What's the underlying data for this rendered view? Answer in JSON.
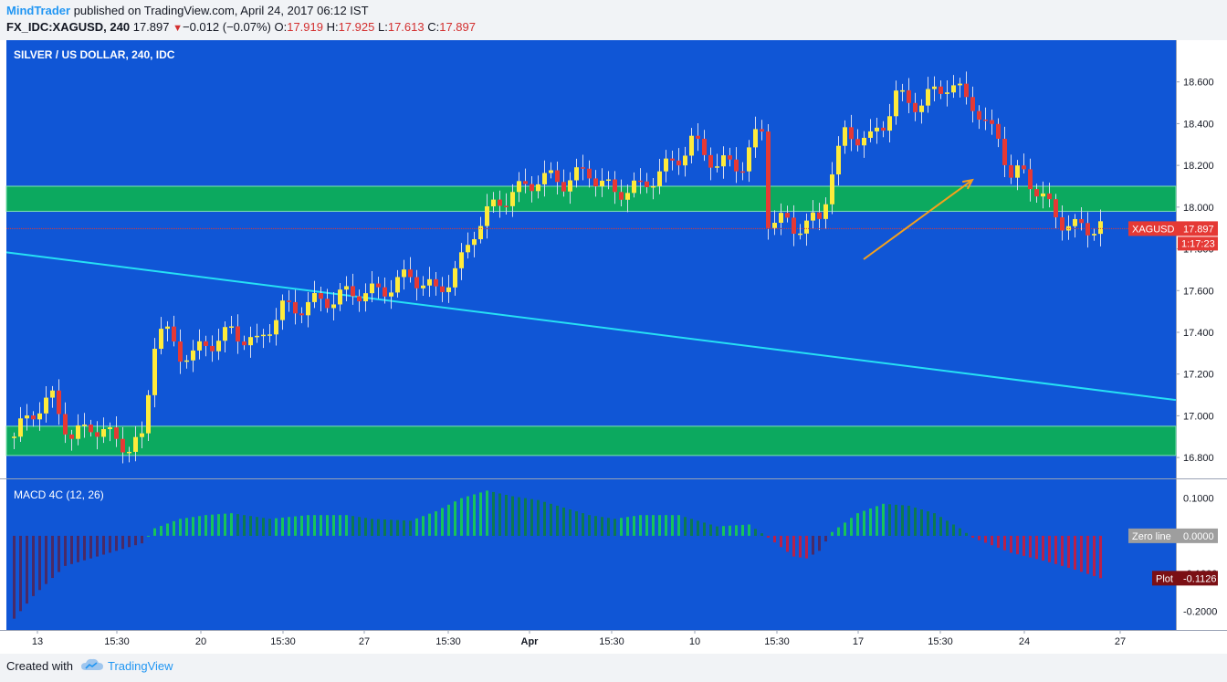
{
  "header": {
    "author": "MindTrader",
    "published_text": "published on TradingView.com, April 24, 2017 06:12 IST",
    "symbol_label": "FX_IDC:XAGUSD, 240",
    "last": "17.897",
    "change": "−0.012 (−0.07%)",
    "o_label": "O:",
    "o_value": "17.919",
    "h_label": "H:",
    "h_value": "17.925",
    "l_label": "L:",
    "l_value": "17.613",
    "c_label": "C:",
    "c_value": "17.897"
  },
  "footer": {
    "created": "Created with",
    "brand": "TradingView"
  },
  "colors": {
    "panel_bg": "#1056d6",
    "zone": "#0ca95f",
    "up_candle": "#ffeb3b",
    "down_candle": "#e53935",
    "trendline": "#26e0f5",
    "arrow": "#f6a11b",
    "price_line": "#e53935",
    "hist_pos_bright": "#18c45a",
    "hist_pos_dim": "#0d7a50",
    "hist_neg_bright": "#b8214a",
    "hist_neg_dim": "#4a2a66"
  },
  "chart_data": {
    "type": "candlestick",
    "title": "SILVER / US DOLLAR, 240, IDC",
    "y_ticks": [
      "18.600",
      "18.400",
      "18.200",
      "18.000",
      "17.800",
      "17.600",
      "17.400",
      "17.200",
      "17.000",
      "16.800"
    ],
    "y_range": [
      16.7,
      18.8
    ],
    "x_ticks": [
      "13",
      "15:30",
      "20",
      "15:30",
      "27",
      "15:30",
      "Apr",
      "15:30",
      "10",
      "15:30",
      "17",
      "15:30",
      "24",
      "27"
    ],
    "last_price_tag": "XAGUSD",
    "last_price": "17.897",
    "countdown": "1:17:23",
    "zones": [
      {
        "low": 17.98,
        "high": 18.1
      },
      {
        "low": 16.81,
        "high": 16.95
      }
    ],
    "trendline": [
      {
        "bar": 0,
        "price": 17.78
      },
      {
        "bar": 150,
        "price": 17.2
      }
    ],
    "projection_arrow": [
      {
        "bar": 133,
        "price": 17.75
      },
      {
        "bar": 150,
        "price": 18.13
      }
    ],
    "keypoints": [
      [
        0,
        16.9
      ],
      [
        3,
        17.0
      ],
      [
        6,
        17.08
      ],
      [
        9,
        16.92
      ],
      [
        12,
        16.95
      ],
      [
        15,
        16.88
      ],
      [
        18,
        16.85
      ],
      [
        20,
        16.9
      ],
      [
        22,
        17.38
      ],
      [
        23,
        17.42
      ],
      [
        24,
        17.38
      ],
      [
        26,
        17.28
      ],
      [
        28,
        17.27
      ],
      [
        30,
        17.35
      ],
      [
        34,
        17.42
      ],
      [
        38,
        17.32
      ],
      [
        42,
        17.52
      ],
      [
        46,
        17.55
      ],
      [
        50,
        17.54
      ],
      [
        54,
        17.6
      ],
      [
        58,
        17.62
      ],
      [
        62,
        17.65
      ],
      [
        66,
        17.6
      ],
      [
        70,
        17.75
      ],
      [
        72,
        17.88
      ],
      [
        74,
        17.95
      ],
      [
        78,
        18.08
      ],
      [
        82,
        18.15
      ],
      [
        86,
        18.1
      ],
      [
        90,
        18.18
      ],
      [
        94,
        18.08
      ],
      [
        98,
        18.07
      ],
      [
        102,
        18.2
      ],
      [
        106,
        18.32
      ],
      [
        110,
        18.18
      ],
      [
        114,
        18.22
      ],
      [
        116,
        18.35
      ],
      [
        117,
        18.38
      ],
      [
        118,
        17.95
      ],
      [
        120,
        17.92
      ],
      [
        122,
        17.88
      ],
      [
        124,
        17.92
      ],
      [
        126,
        17.95
      ],
      [
        128,
        18.2
      ],
      [
        130,
        18.35
      ],
      [
        134,
        18.3
      ],
      [
        136,
        18.4
      ],
      [
        138,
        18.55
      ],
      [
        142,
        18.5
      ],
      [
        146,
        18.57
      ],
      [
        150,
        18.52
      ],
      [
        152,
        18.4
      ],
      [
        154,
        18.35
      ],
      [
        156,
        18.12
      ],
      [
        158,
        18.15
      ],
      [
        160,
        18.08
      ],
      [
        164,
        17.95
      ],
      [
        166,
        17.9
      ],
      [
        168,
        17.88
      ],
      [
        170,
        17.897
      ]
    ],
    "macd": {
      "label": "MACD 4C (12, 26)",
      "y_ticks": [
        "0.1000",
        "0.0000",
        "-0.1000",
        "-0.2000"
      ],
      "y_range": [
        -0.25,
        0.15
      ],
      "zero_label": "Zero line",
      "zero_value": "0.0000",
      "plot_label": "Plot",
      "plot_value": "-0.1126",
      "keypoints": [
        [
          0,
          -0.22
        ],
        [
          3,
          -0.16
        ],
        [
          8,
          -0.08
        ],
        [
          14,
          -0.05
        ],
        [
          20,
          -0.02
        ],
        [
          22,
          0.02
        ],
        [
          26,
          0.045
        ],
        [
          30,
          0.055
        ],
        [
          34,
          0.06
        ],
        [
          40,
          0.045
        ],
        [
          46,
          0.055
        ],
        [
          52,
          0.055
        ],
        [
          56,
          0.045
        ],
        [
          62,
          0.04
        ],
        [
          66,
          0.065
        ],
        [
          70,
          0.1
        ],
        [
          74,
          0.12
        ],
        [
          78,
          0.105
        ],
        [
          82,
          0.095
        ],
        [
          86,
          0.075
        ],
        [
          90,
          0.055
        ],
        [
          94,
          0.045
        ],
        [
          98,
          0.055
        ],
        [
          104,
          0.055
        ],
        [
          110,
          0.025
        ],
        [
          115,
          0.03
        ],
        [
          118,
          -0.005
        ],
        [
          122,
          -0.055
        ],
        [
          124,
          -0.06
        ],
        [
          126,
          -0.04
        ],
        [
          128,
          0.01
        ],
        [
          132,
          0.06
        ],
        [
          136,
          0.085
        ],
        [
          140,
          0.08
        ],
        [
          144,
          0.06
        ],
        [
          148,
          0.02
        ],
        [
          150,
          -0.005
        ],
        [
          156,
          -0.045
        ],
        [
          162,
          -0.07
        ],
        [
          166,
          -0.09
        ],
        [
          170,
          -0.1126
        ]
      ]
    }
  }
}
